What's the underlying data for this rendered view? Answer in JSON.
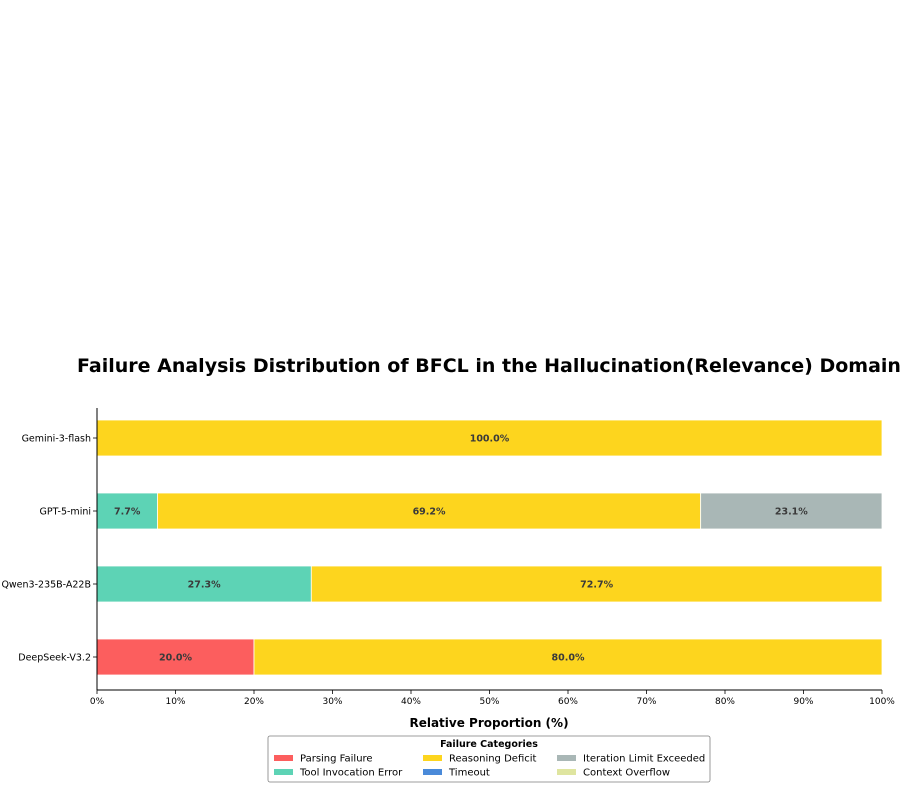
{
  "chart_data": {
    "type": "bar",
    "orientation": "horizontal",
    "stacked": true,
    "title": "Failure Analysis Distribution of BFCL in the Hallucination(Relevance) Domain",
    "xlabel": "Relative Proportion (%)",
    "ylabel": "",
    "xlim": [
      0,
      100
    ],
    "x_ticks": [
      "0%",
      "10%",
      "20%",
      "30%",
      "40%",
      "50%",
      "60%",
      "70%",
      "80%",
      "90%",
      "100%"
    ],
    "categories": [
      "Gemini-3-flash",
      "GPT-5-mini",
      "Qwen3-235B-A22B",
      "DeepSeek-V3.2"
    ],
    "series": [
      {
        "name": "Parsing Failure",
        "color": "#fc5e5e",
        "values": [
          0,
          0,
          0,
          20.0
        ]
      },
      {
        "name": "Tool Invocation Error",
        "color": "#5dd3b5",
        "values": [
          0,
          7.7,
          27.3,
          0
        ]
      },
      {
        "name": "Reasoning Deficit",
        "color": "#fdd51e",
        "values": [
          100.0,
          69.2,
          72.7,
          80.0
        ]
      },
      {
        "name": "Timeout",
        "color": "#4a8ad9",
        "values": [
          0,
          0,
          0,
          0
        ]
      },
      {
        "name": "Iteration Limit Exceeded",
        "color": "#a9b7b6",
        "values": [
          0,
          23.1,
          0,
          0
        ]
      },
      {
        "name": "Context Overflow",
        "color": "#dfe5a0",
        "values": [
          0,
          0,
          0,
          0
        ]
      }
    ],
    "data_labels": [
      [
        "",
        "",
        "100.0%",
        "",
        "",
        ""
      ],
      [
        "",
        "7.7%",
        "69.2%",
        "",
        "23.1%",
        ""
      ],
      [
        "",
        "27.3%",
        "72.7%",
        "",
        "",
        ""
      ],
      [
        "20.0%",
        "",
        "80.0%",
        "",
        "",
        ""
      ]
    ],
    "legend": {
      "title": "Failure Categories",
      "placement": "bottom-center",
      "columns": 3
    },
    "grid": false
  }
}
